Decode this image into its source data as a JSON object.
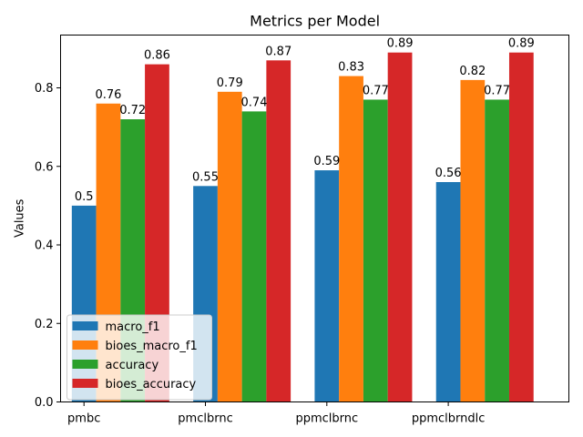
{
  "chart_data": {
    "type": "bar",
    "title": "Metrics per Model",
    "xlabel": "",
    "ylabel": "Values",
    "categories": [
      "pmbc",
      "pmclbrnc",
      "ppmclbrnc",
      "ppmclbrndlc"
    ],
    "series": [
      {
        "name": "macro_f1",
        "color": "#1f77b4",
        "values": [
          0.5,
          0.55,
          0.59,
          0.56
        ]
      },
      {
        "name": "bioes_macro_f1",
        "color": "#ff7f0e",
        "values": [
          0.76,
          0.79,
          0.83,
          0.82
        ]
      },
      {
        "name": "accuracy",
        "color": "#2ca02c",
        "values": [
          0.72,
          0.74,
          0.77,
          0.77
        ]
      },
      {
        "name": "bioes_accuracy",
        "color": "#d62728",
        "values": [
          0.86,
          0.87,
          0.89,
          0.89
        ]
      }
    ],
    "ylim": [
      0,
      0.9345
    ],
    "yticks": [
      0.0,
      0.2,
      0.4,
      0.6,
      0.8
    ],
    "ytick_labels": [
      "0.0",
      "0.2",
      "0.4",
      "0.6",
      "0.8"
    ],
    "data_labels": [
      [
        "0.5",
        "0.55",
        "0.59",
        "0.56"
      ],
      [
        "0.76",
        "0.79",
        "0.83",
        "0.82"
      ],
      [
        "0.72",
        "0.74",
        "0.77",
        "0.77"
      ],
      [
        "0.86",
        "0.87",
        "0.89",
        "0.89"
      ]
    ],
    "grid": false,
    "legend_position": "lower-left"
  }
}
